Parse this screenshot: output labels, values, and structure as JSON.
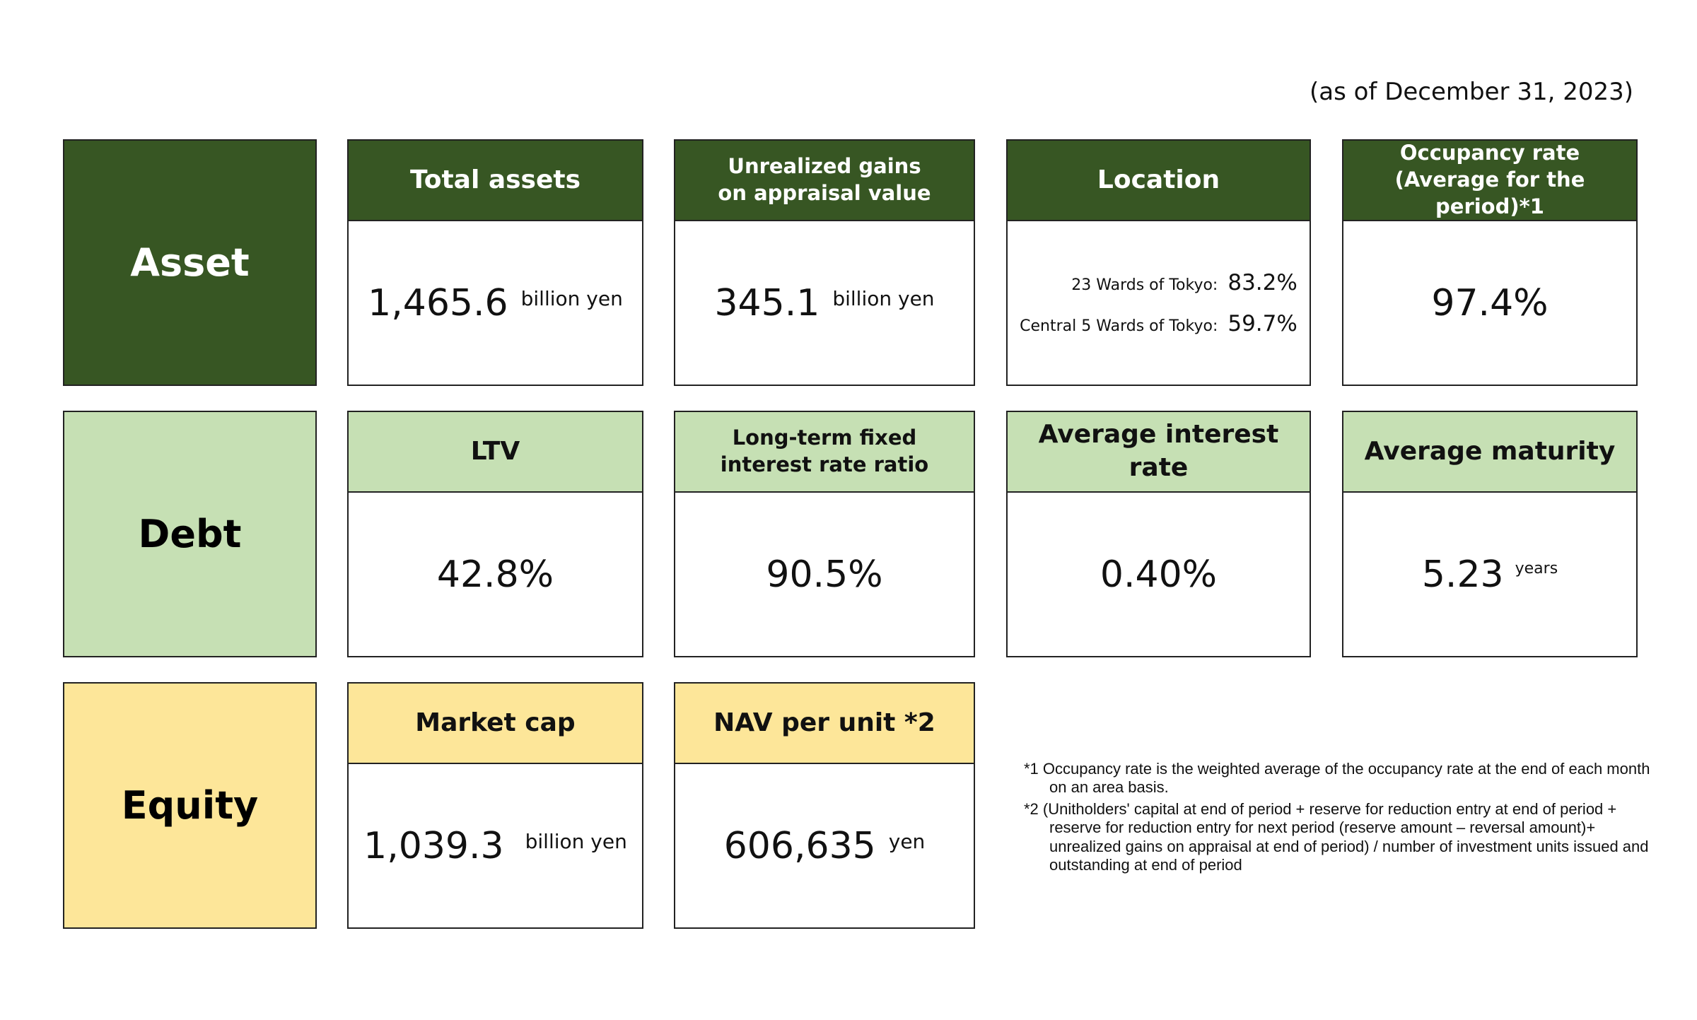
{
  "as_of": "(as of December 31, 2023)",
  "categories": {
    "asset": "Asset",
    "debt": "Debt",
    "equity": "Equity"
  },
  "asset": {
    "total_assets": {
      "label": "Total assets",
      "value": "1,465.6",
      "unit": "billion yen"
    },
    "unrealized_gains": {
      "label_line1": "Unrealized gains",
      "label_line2": "on appraisal value",
      "value": "345.1",
      "unit": "billion yen"
    },
    "location": {
      "label": "Location",
      "rows": [
        {
          "key": "23 Wards of Tokyo:",
          "value": "83.2%"
        },
        {
          "key": "Central 5 Wards of Tokyo:",
          "value": "59.7%"
        }
      ]
    },
    "occupancy": {
      "label_line1": "Occupancy rate",
      "label_line2": "(Average for the period)*1",
      "value": "97.4%"
    }
  },
  "debt": {
    "ltv": {
      "label": "LTV",
      "value": "42.8%"
    },
    "fixed_ratio": {
      "label_line1": "Long-term fixed",
      "label_line2": "interest rate ratio",
      "value": "90.5%"
    },
    "avg_interest": {
      "label": "Average interest rate",
      "value": "0.40%"
    },
    "avg_maturity": {
      "label": "Average maturity",
      "value": "5.23",
      "unit": "years"
    }
  },
  "equity": {
    "market_cap": {
      "label": "Market cap",
      "value": "1,039.3",
      "unit": "billion yen"
    },
    "nav": {
      "label": "NAV per unit *2",
      "value": "606,635",
      "unit": "yen"
    }
  },
  "notes": [
    "*1 Occupancy rate is the weighted average of the occupancy rate at the end of each month on an area basis.",
    "*2 (Unitholders' capital at end of period + reserve for reduction entry at end of period + reserve for reduction entry for next period (reserve amount – reversal amount)+ unrealized gains on appraisal at end of period) / number of investment units issued and outstanding at end of period"
  ],
  "colors": {
    "asset": "#375623",
    "debt": "#c6e0b4",
    "equity": "#fde699"
  }
}
